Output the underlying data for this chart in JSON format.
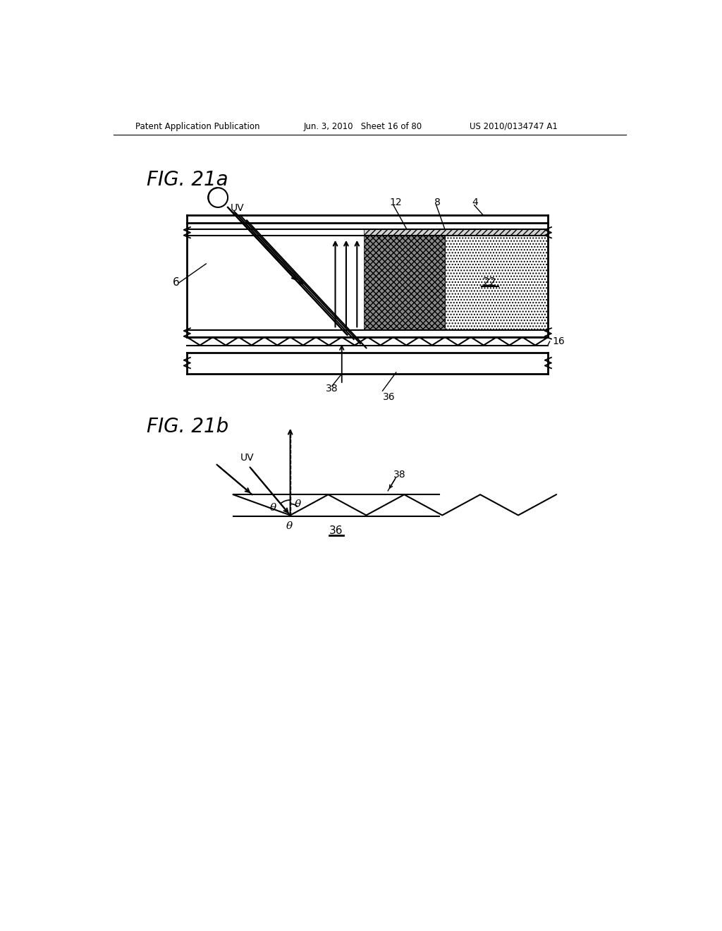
{
  "bg_color": "#ffffff",
  "header_left": "Patent Application Publication",
  "header_mid": "Jun. 3, 2010   Sheet 16 of 80",
  "header_right": "US 2010/0134747 A1",
  "fig21a_label": "FIG. 21a",
  "fig21b_label": "FIG. 21b"
}
